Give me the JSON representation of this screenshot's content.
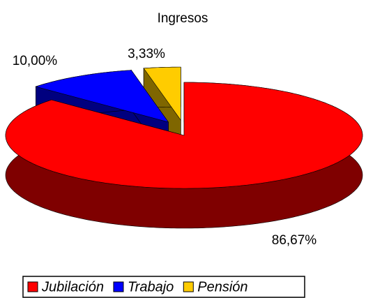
{
  "chart_data": {
    "type": "pie",
    "title": "Ingresos",
    "categories": [
      "Jubilación",
      "Trabajo",
      "Pensión"
    ],
    "values": [
      86.67,
      10,
      3.33
    ],
    "value_labels": [
      "86,67%",
      "10,00%",
      "3,33%"
    ],
    "colors": [
      "#ff0000",
      "#0000ff",
      "#ffcc00"
    ],
    "legend": "bottom"
  }
}
